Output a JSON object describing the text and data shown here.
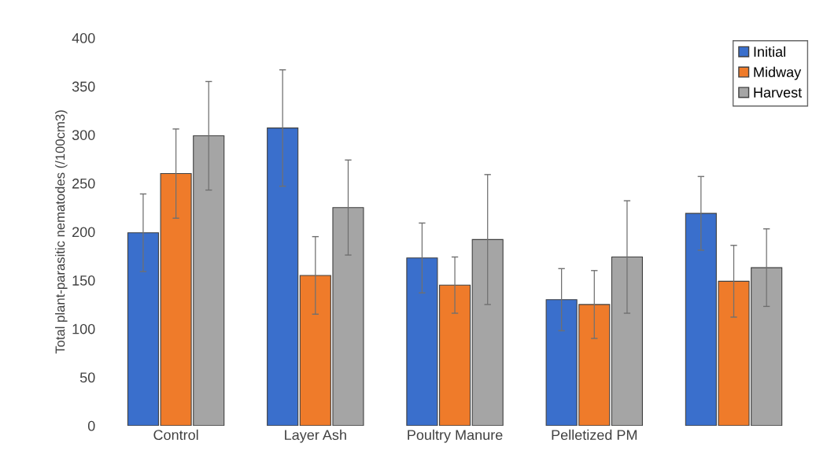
{
  "chart_data": {
    "type": "bar",
    "ylabel": "Total plant-parasitic nematodes (/100cm3)",
    "categories": [
      "Control",
      "Layer Ash",
      "Poultry Manure",
      "Pelletized PM",
      null
    ],
    "series": [
      {
        "name": "Initial",
        "color": "#3a6fcc",
        "values": [
          199,
          307,
          173,
          130,
          219
        ],
        "errors": [
          40,
          60,
          36,
          32,
          38
        ]
      },
      {
        "name": "Midway",
        "color": "#ef7b2a",
        "values": [
          260,
          155,
          145,
          125,
          149
        ],
        "errors": [
          46,
          40,
          29,
          35,
          37
        ]
      },
      {
        "name": "Harvest",
        "color": "#a5a5a5",
        "values": [
          299,
          225,
          192,
          174,
          163
        ],
        "errors": [
          56,
          49,
          67,
          58,
          40
        ]
      }
    ],
    "ylim": [
      0,
      400
    ],
    "yticks": [
      0,
      50,
      100,
      150,
      200,
      250,
      300,
      350,
      400
    ],
    "grid": false,
    "legend": "top right"
  }
}
